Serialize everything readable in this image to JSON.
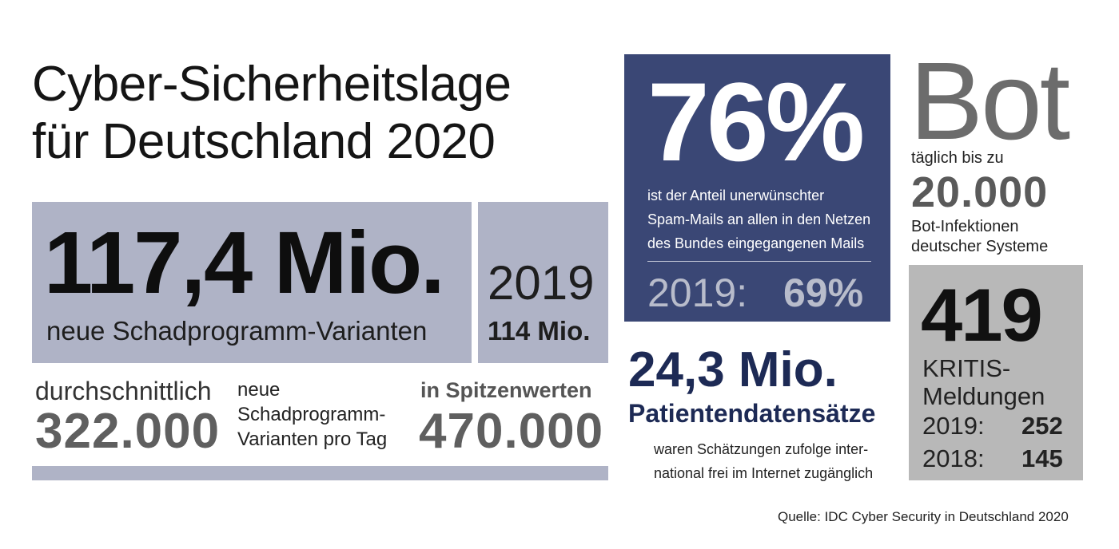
{
  "title": {
    "line1": "Cyber-Sicherheitslage",
    "line2": "für Deutschland 2020"
  },
  "malware": {
    "value": "117,4 Mio.",
    "label": "neue Schadprogramm-Varianten",
    "prev_year": "2019",
    "prev_value": "114 Mio."
  },
  "daily": {
    "avg_label": "durchschnittlich",
    "avg_value": "322.000",
    "middle_line1": "neue",
    "middle_line2": "Schadprogramm-",
    "middle_line3": "Varianten pro Tag",
    "peak_label": "in Spitzenwerten",
    "peak_value": "470.000"
  },
  "spam": {
    "value": "76%",
    "line1": "ist der Anteil unerwünschter",
    "line2": "Spam-Mails an allen in den Netzen",
    "line3": "des Bundes eingegangenen Mails",
    "prev_label": "2019:",
    "prev_value": "69%"
  },
  "patients": {
    "value": "24,3 Mio.",
    "label": "Patientendatensätze",
    "line1": "waren Schätzungen zufolge inter-",
    "line2": "national frei im Internet zugänglich"
  },
  "bot": {
    "title": "Bot",
    "label": "täglich bis zu",
    "value": "20.000",
    "line1": "Bot-Infektionen",
    "line2": "deutscher Systeme"
  },
  "kritis": {
    "value": "419",
    "line1": "KRITIS-",
    "line2": "Meldungen",
    "rows": [
      {
        "label": "2019:",
        "value": "252"
      },
      {
        "label": "2018:",
        "value": "145"
      }
    ]
  },
  "source": "Quelle: IDC Cyber Security in Deutschland 2020",
  "colors": {
    "navy": "#3a4775",
    "lavender": "#afb3c6",
    "gray_box": "#b8b8b8",
    "dark_navy_text": "#1d2a55"
  }
}
